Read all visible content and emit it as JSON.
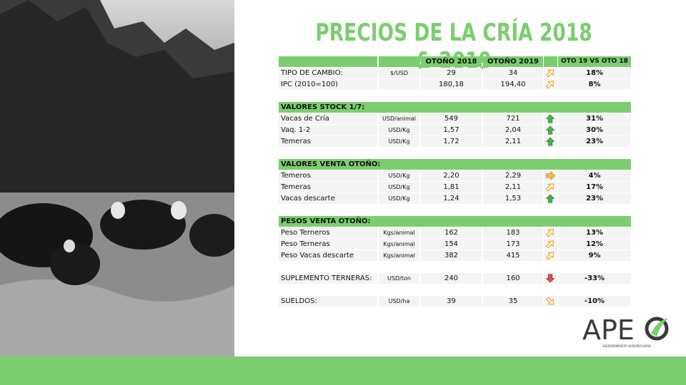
{
  "title": "PRECIOS DE LA CRÍA 2018 & 2019",
  "table": {
    "columns": [
      "OTOÑO 2018",
      "OTOÑO 2019",
      "OTO 19 VS OTO 18"
    ],
    "groups": [
      {
        "rows": [
          {
            "label": "TIPO DE CAMBIO:",
            "unit": "$/USD",
            "y2018": "29",
            "y2019": "34",
            "change": "18%"
          },
          {
            "label": "IPC (2010=100)",
            "y2018": "180,18",
            "y2019": "194,40",
            "change": "8%"
          }
        ]
      },
      {
        "title": "VALORES STOCK 1/7:",
        "rows": [
          {
            "label": "Vacas de Cría",
            "unit": "USD/animal",
            "y2018": "549",
            "y2019": "721",
            "change": "31%"
          },
          {
            "label": "Vaq. 1-2",
            "unit": "USD/Kg",
            "y2018": "1,57",
            "y2019": "2,04",
            "change": "30%"
          },
          {
            "label": "Temeras",
            "unit": "USD/Kg",
            "y2018": "1,72",
            "y2019": "2,11",
            "change": "23%"
          }
        ]
      },
      {
        "title": "VALORES VENTA OTOÑO:",
        "rows": [
          {
            "label": "Temeros",
            "unit": "USD/Kg",
            "y2018": "2,20",
            "y2019": "2,29",
            "change": "4%"
          },
          {
            "label": "Temeras",
            "unit": "USD/Kg",
            "y2018": "1,81",
            "y2019": "2,11",
            "change": "17%"
          },
          {
            "label": "Vacas descarte",
            "unit": "USD/Kg",
            "y2018": "1,24",
            "y2019": "1,53",
            "change": "23%"
          }
        ]
      },
      {
        "title": "PESOS VENTA OTOÑO:",
        "rows": [
          {
            "label": "Peso Terneros",
            "unit": "Kgs/animal",
            "y2018": "162",
            "y2019": "183",
            "change": "13%"
          },
          {
            "label": "Peso Terneras",
            "unit": "Kgs/animal",
            "y2018": "154",
            "y2019": "173",
            "change": "12%"
          },
          {
            "label": "Peso Vacas descarte",
            "unit": "Kgs/animal",
            "y2018": "382",
            "y2019": "415",
            "change": "9%"
          }
        ]
      },
      {
        "rows": [
          {
            "label": "SUPLEMENTO TERNERAS:",
            "unit": "USD/ton",
            "y2018": "240",
            "y2019": "160",
            "change": "-33%"
          }
        ]
      },
      {
        "rows": [
          {
            "label": "SUELDOS:",
            "unit": "USD/ha",
            "y2018": "39",
            "y2019": "35",
            "change": "-10%"
          }
        ]
      }
    ]
  },
  "logo": {
    "name": "APE",
    "tagline": "ASESORAMIENTO AGROPECUARIO"
  }
}
